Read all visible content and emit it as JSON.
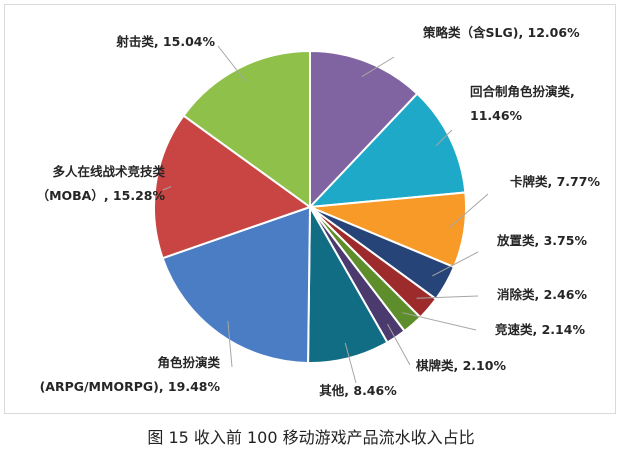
{
  "chart_data": {
    "type": "pie",
    "start_angle_deg": 0,
    "direction": "clockwise",
    "slices": [
      {
        "label": "策略类（含SLG)",
        "value": 12.06,
        "text": "策略类（含SLG), 12.06%",
        "color": "#8064a2"
      },
      {
        "label": "回合制角色扮演类",
        "value": 11.46,
        "text": [
          "回合制角色扮演类,",
          "11.46%"
        ],
        "color": "#1fa9c9"
      },
      {
        "label": "卡牌类",
        "value": 7.77,
        "text": "卡牌类, 7.77%",
        "color": "#f79a27"
      },
      {
        "label": "放置类",
        "value": 3.75,
        "text": "放置类, 3.75%",
        "color": "#264478"
      },
      {
        "label": "消除类",
        "value": 2.46,
        "text": "消除类, 2.46%",
        "color": "#9e2b2b"
      },
      {
        "label": "竞速类",
        "value": 2.14,
        "text": "竞速类, 2.14%",
        "color": "#5e8d2c"
      },
      {
        "label": "棋牌类",
        "value": 2.1,
        "text": "棋牌类, 2.10%",
        "color": "#4b3a6e"
      },
      {
        "label": "其他",
        "value": 8.46,
        "text": "其他, 8.46%",
        "color": "#116d84"
      },
      {
        "label": "角色扮演类 (ARPG/MMORPG)",
        "value": 19.48,
        "text": [
          "角色扮演类",
          "(ARPG/MMORPG), 19.48%"
        ],
        "color": "#4a7dc4"
      },
      {
        "label": "多人在线战术竞技类（MOBA）",
        "value": 15.28,
        "text": [
          "多人在线战术竞技类",
          "（MOBA）, 15.28%"
        ],
        "color": "#c84543"
      },
      {
        "label": "射击类",
        "value": 15.04,
        "text": "射击类, 15.04%",
        "color": "#8fc14a"
      }
    ]
  },
  "caption": "图 15  收入前 100 移动游戏产品流水收入占比"
}
